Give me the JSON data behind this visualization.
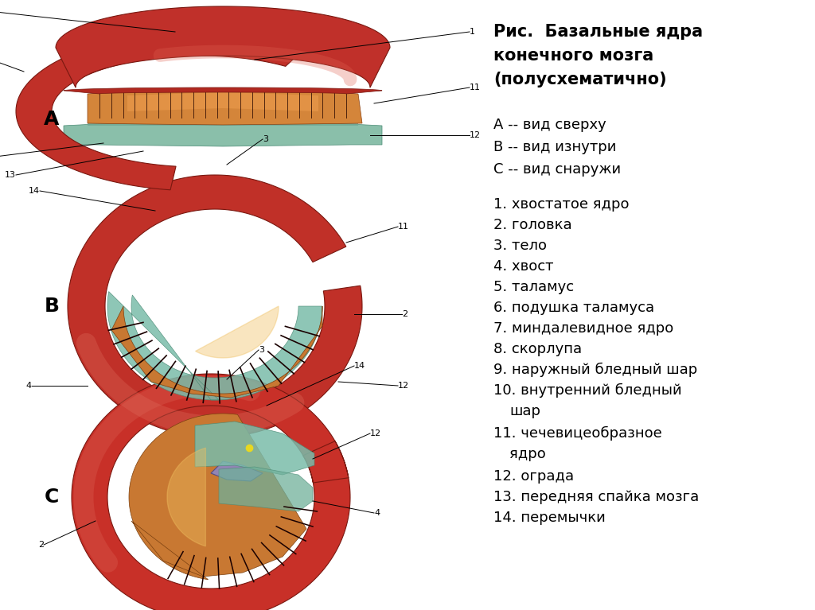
{
  "background_color": "#ffffff",
  "title_line1": "Рис.  Базальные ядра",
  "title_line2": "конечного мозга",
  "title_line3": "(полусхематично)",
  "views": [
    "А -- вид сверху",
    "В -- вид изнутри",
    "С -- вид снаружи"
  ],
  "legend_items": [
    "1. хвостатое ядро",
    "2. головка",
    "3. тело",
    "4. хвост",
    "5. таламус",
    "6. подушка таламуса",
    "7. миндалевидное ядро",
    "8. скорлупа",
    "9. наружный бледный шар",
    "10. внутренний бледный\n    шар",
    "11. чечевицеобразное\n    ядро",
    "12. ограда",
    "13. передняя спайка мозга",
    "14. перемычки"
  ],
  "text_color": "#000000",
  "title_fontsize": 15,
  "legend_fontsize": 13,
  "views_fontsize": 13
}
